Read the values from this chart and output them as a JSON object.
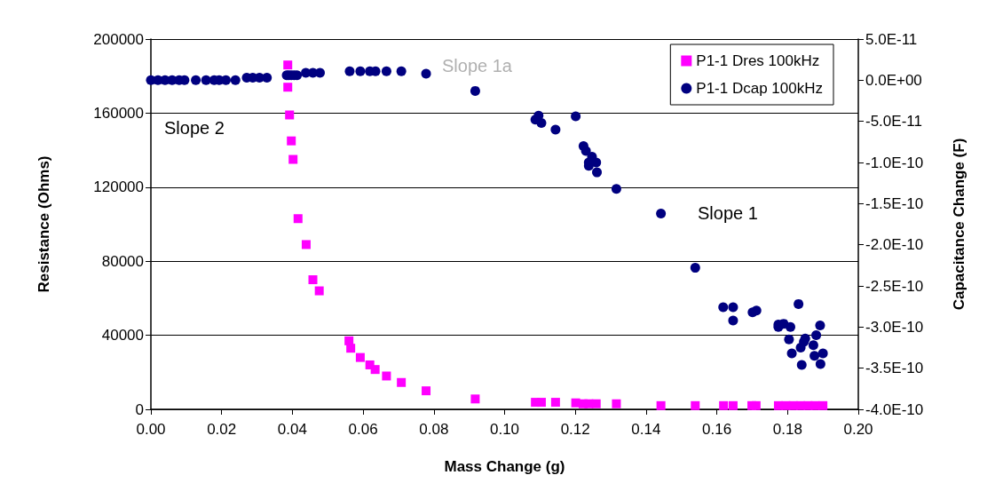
{
  "chart_data": {
    "type": "scatter",
    "xlabel": "Mass Change (g)",
    "ylabel": "Resistance (Ohms)",
    "y2label": "Capacitance Change (F)",
    "xlim": [
      0,
      0.2
    ],
    "xticks": [
      {
        "value": 0,
        "label": "0.00"
      },
      {
        "value": 0.02,
        "label": "0.02"
      },
      {
        "value": 0.04,
        "label": "0.04"
      },
      {
        "value": 0.06,
        "label": "0.06"
      },
      {
        "value": 0.08,
        "label": "0.08"
      },
      {
        "value": 0.1,
        "label": "0.10"
      },
      {
        "value": 0.12,
        "label": "0.12"
      },
      {
        "value": 0.14,
        "label": "0.14"
      },
      {
        "value": 0.16,
        "label": "0.16"
      },
      {
        "value": 0.18,
        "label": "0.18"
      },
      {
        "value": 0.2,
        "label": "0.20"
      }
    ],
    "ylim": [
      0,
      200000
    ],
    "yticks": [
      0,
      40000,
      80000,
      120000,
      160000,
      200000
    ],
    "y2lim": [
      -4e-10,
      5e-11
    ],
    "y2ticks": [
      {
        "value": -4e-10,
        "label": "-4.0E-10"
      },
      {
        "value": -3.5e-10,
        "label": "-3.5E-10"
      },
      {
        "value": -3e-10,
        "label": "-3.0E-10"
      },
      {
        "value": -2.5e-10,
        "label": "-2.5E-10"
      },
      {
        "value": -2e-10,
        "label": "-2.0E-10"
      },
      {
        "value": -1.5e-10,
        "label": "-1.5E-10"
      },
      {
        "value": -1e-10,
        "label": "-1.0E-10"
      },
      {
        "value": -5e-11,
        "label": "-5.0E-11"
      },
      {
        "value": 0,
        "label": "0.0E+00"
      },
      {
        "value": 5e-11,
        "label": "5.0E-11"
      }
    ],
    "grid": "y",
    "legend": "top right",
    "annotations": [
      "Slope 2",
      "Slope 1a",
      "Slope 1"
    ],
    "series": [
      {
        "name": "P1-1 Dres 100kHz",
        "color": "#ff00ff",
        "marker": "square",
        "x": [
          0.0387,
          0.0387,
          0.0392,
          0.0397,
          0.0402,
          0.0416,
          0.0439,
          0.0458,
          0.0476,
          0.056,
          0.0565,
          0.0592,
          0.0619,
          0.0634,
          0.0666,
          0.0708,
          0.0778,
          0.0917,
          0.1087,
          0.1104,
          0.1144,
          0.1201,
          0.1222,
          0.1238,
          0.1259,
          0.1316,
          0.1442,
          0.1539,
          0.1619,
          0.1646,
          0.1699,
          0.1711,
          0.1774,
          0.1795,
          0.1816,
          0.1837,
          0.1858,
          0.1878,
          0.19
        ],
        "values": [
          186000,
          174000,
          159000,
          145000,
          135000,
          103000,
          89000,
          70000,
          64000,
          37000,
          33000,
          28000,
          24000,
          21500,
          18000,
          14500,
          10000,
          5600,
          3800,
          3800,
          3800,
          3500,
          3000,
          3000,
          3000,
          3000,
          2000,
          2000,
          2000,
          2000,
          2000,
          2000,
          2000,
          2000,
          2000,
          2000,
          2000,
          2000,
          2000
        ]
      },
      {
        "name": "P1-1 Dcap 100kHz",
        "color": "#000080",
        "marker": "circle",
        "axis": "y2",
        "x": [
          0,
          0.002,
          0.004,
          0.006,
          0.008,
          0.0095,
          0.0127,
          0.0156,
          0.0179,
          0.0193,
          0.0212,
          0.0239,
          0.0271,
          0.0288,
          0.0307,
          0.0328,
          0.0384,
          0.039,
          0.0397,
          0.0405,
          0.0413,
          0.0438,
          0.0458,
          0.0478,
          0.0562,
          0.0592,
          0.0619,
          0.0635,
          0.0666,
          0.0708,
          0.0778,
          0.0917,
          0.1087,
          0.1096,
          0.1104,
          0.1144,
          0.1201,
          0.1223,
          0.123,
          0.1247,
          0.1238,
          0.1259,
          0.1238,
          0.1261,
          0.1316,
          0.1442,
          0.1539,
          0.1618,
          0.1646,
          0.1646,
          0.1701,
          0.1712,
          0.1774,
          0.1774,
          0.1789,
          0.1808,
          0.1831,
          0.1804,
          0.185,
          0.1846,
          0.1837,
          0.1812,
          0.184,
          0.1873,
          0.1881,
          0.1892,
          0.1876,
          0.19,
          0.1893
        ],
        "values": [
          0,
          0,
          0,
          0,
          0,
          0,
          0,
          0,
          0,
          0,
          0,
          0,
          3e-12,
          3e-12,
          3e-12,
          3e-12,
          6e-12,
          6e-12,
          6e-12,
          6e-12,
          6e-12,
          9e-12,
          9e-12,
          9e-12,
          1.1e-11,
          1.1e-11,
          1.1e-11,
          1.1e-11,
          1.1e-11,
          1.1e-11,
          8e-12,
          -1.3e-11,
          -4.8e-11,
          -4.3e-11,
          -5.2e-11,
          -6e-11,
          -4.4e-11,
          -8e-11,
          -8.6e-11,
          -9.3e-11,
          -1e-10,
          -1e-10,
          -1.04e-10,
          -1.12e-10,
          -1.32e-10,
          -1.62e-10,
          -2.28e-10,
          -2.76e-10,
          -2.76e-10,
          -2.92e-10,
          -2.82e-10,
          -2.8e-10,
          -2.97e-10,
          -3e-10,
          -2.96e-10,
          -3e-10,
          -2.72e-10,
          -3.15e-10,
          -3.14e-10,
          -3.18e-10,
          -3.25e-10,
          -3.32e-10,
          -3.46e-10,
          -3.22e-10,
          -3.1e-10,
          -2.98e-10,
          -3.35e-10,
          -3.32e-10,
          -3.45e-10
        ]
      }
    ]
  }
}
